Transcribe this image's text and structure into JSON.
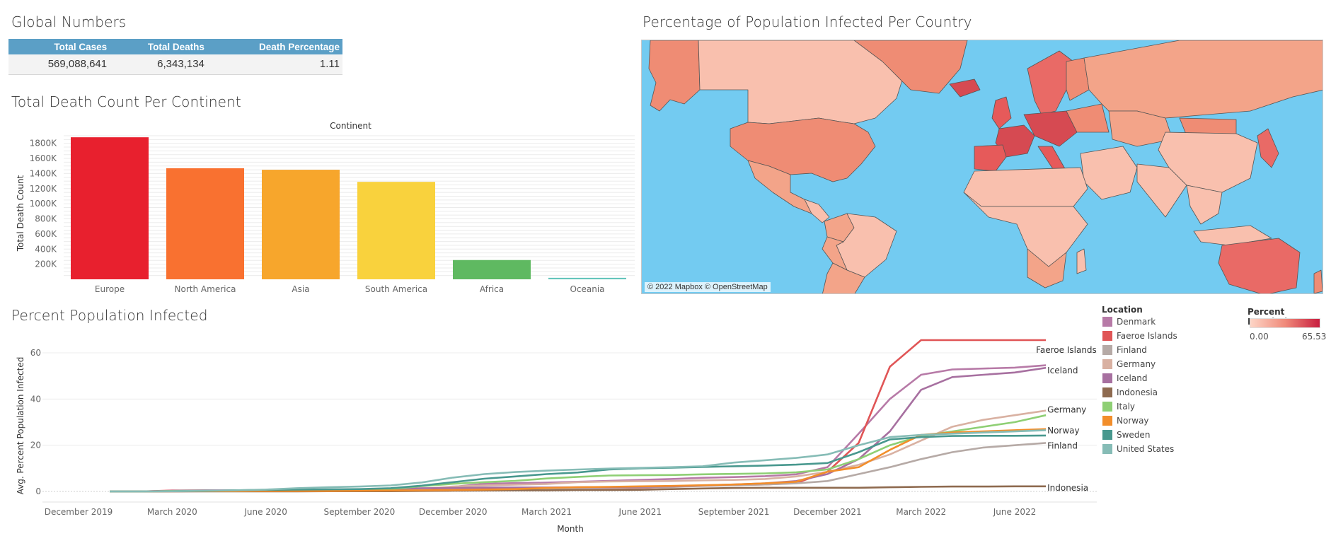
{
  "global_numbers": {
    "title": "Global Numbers",
    "headers": [
      "Total Cases",
      "Total Deaths",
      "Death Percentage"
    ],
    "values": [
      "569,088,641",
      "6,343,134",
      "1.11"
    ]
  },
  "map": {
    "title": "Percentage of Population Infected Per Country",
    "credit": "© 2022 Mapbox © OpenStreetMap",
    "colors": {
      "ocean": "#73cbf1",
      "low": "#f9c0ae",
      "mid": "#ef8c74",
      "high": "#d64a52"
    },
    "legend": {
      "title": "Percent Populatio..",
      "min": "0.00",
      "max": "65.53"
    }
  },
  "chart_data": [
    {
      "type": "bar",
      "title": "Total Death Count Per Continent",
      "header": "Continent",
      "ylabel": "Total Death Count",
      "xlabel": "",
      "categories": [
        "Europe",
        "North America",
        "Asia",
        "South America",
        "Africa",
        "Oceania"
      ],
      "values": [
        1880000,
        1470000,
        1450000,
        1290000,
        255000,
        20000
      ],
      "colors": [
        "#e8202e",
        "#f97130",
        "#f7a62c",
        "#f9d23d",
        "#5fb961",
        "#64c5bb"
      ],
      "ylim": [
        0,
        1900000
      ],
      "yticks": [
        200000,
        400000,
        600000,
        800000,
        1000000,
        1200000,
        1400000,
        1600000,
        1800000
      ],
      "ytick_labels": [
        "200K",
        "400K",
        "600K",
        "800K",
        "1000K",
        "1200K",
        "1400K",
        "1600K",
        "1800K"
      ]
    },
    {
      "type": "line",
      "title": "Percent Population Infected",
      "xlabel": "Month",
      "ylabel": "Avg. Percent Population Infected",
      "ylim": [
        0,
        66
      ],
      "yticks": [
        0,
        20,
        40,
        60
      ],
      "x_months": [
        "2020-01",
        "2020-02",
        "2020-03",
        "2020-04",
        "2020-05",
        "2020-06",
        "2020-07",
        "2020-08",
        "2020-09",
        "2020-10",
        "2020-11",
        "2020-12",
        "2021-01",
        "2021-02",
        "2021-03",
        "2021-04",
        "2021-05",
        "2021-06",
        "2021-07",
        "2021-08",
        "2021-09",
        "2021-10",
        "2021-11",
        "2021-12",
        "2022-01",
        "2022-02",
        "2022-03",
        "2022-04",
        "2022-05",
        "2022-06",
        "2022-07"
      ],
      "xticks": [
        "December 2019",
        "March 2020",
        "June 2020",
        "September 2020",
        "December 2020",
        "March 2021",
        "June 2021",
        "September 2021",
        "December 2021",
        "March 2022",
        "June 2022"
      ],
      "legend_title": "Location",
      "series": [
        {
          "name": "Denmark",
          "color": "#b77aa7",
          "values": [
            0,
            0,
            0.1,
            0.2,
            0.2,
            0.2,
            0.3,
            0.3,
            0.4,
            0.6,
            1.0,
            2.0,
            3.3,
            3.6,
            3.8,
            4.2,
            4.6,
            5.0,
            5.4,
            5.9,
            6.2,
            6.6,
            7.4,
            10.5,
            25,
            40,
            50.5,
            52.8,
            53.2,
            53.6,
            54.6
          ]
        },
        {
          "name": "Faeroe Islands",
          "color": "#e05556",
          "values": [
            0,
            0,
            0.4,
            0.4,
            0.4,
            0.4,
            0.4,
            0.5,
            0.8,
            1.0,
            1.0,
            1.0,
            1.2,
            1.3,
            1.3,
            1.4,
            1.4,
            1.5,
            2.0,
            2.5,
            2.8,
            3.0,
            3.6,
            8.5,
            21,
            54,
            65.5,
            65.5,
            65.5,
            65.5,
            65.5
          ]
        },
        {
          "name": "Finland",
          "color": "#b6aaa6",
          "values": [
            0,
            0,
            0,
            0.1,
            0.1,
            0.1,
            0.1,
            0.1,
            0.2,
            0.3,
            0.4,
            0.7,
            0.8,
            1.0,
            1.2,
            1.4,
            1.6,
            1.7,
            1.9,
            2.4,
            2.7,
            3.0,
            3.5,
            4.5,
            7.5,
            10.5,
            14,
            17,
            19,
            20,
            21
          ]
        },
        {
          "name": "Germany",
          "color": "#d9b1a2",
          "values": [
            0,
            0,
            0,
            0.2,
            0.2,
            0.2,
            0.3,
            0.3,
            0.4,
            0.6,
            1.1,
            2.1,
            2.6,
            2.9,
            3.2,
            4.0,
            4.3,
            4.4,
            4.5,
            4.8,
            5.0,
            5.4,
            6.5,
            8.5,
            11.5,
            16,
            22,
            28,
            31,
            33,
            35
          ]
        },
        {
          "name": "Iceland",
          "color": "#a770a0",
          "values": [
            0,
            0,
            0.3,
            0.5,
            0.5,
            0.5,
            0.6,
            0.6,
            0.8,
            1.0,
            1.4,
            1.5,
            1.7,
            1.7,
            1.7,
            1.8,
            1.9,
            2.0,
            2.2,
            2.6,
            3.0,
            3.5,
            4.5,
            7.5,
            14,
            26,
            44,
            49.5,
            50.5,
            51.5,
            53.5
          ]
        },
        {
          "name": "Indonesia",
          "color": "#8e6a4f",
          "values": [
            0,
            0,
            0,
            0,
            0,
            0,
            0,
            0.1,
            0.1,
            0.1,
            0.2,
            0.3,
            0.4,
            0.5,
            0.5,
            0.6,
            0.6,
            0.7,
            1.0,
            1.3,
            1.5,
            1.6,
            1.6,
            1.6,
            1.6,
            1.8,
            2.0,
            2.1,
            2.1,
            2.2,
            2.2
          ]
        },
        {
          "name": "Italy",
          "color": "#8ecf74",
          "values": [
            0,
            0,
            0.2,
            0.3,
            0.4,
            0.4,
            0.4,
            0.4,
            0.5,
            1.0,
            2.3,
            3.3,
            4.0,
            4.6,
            5.6,
            6.3,
            6.9,
            7.0,
            7.1,
            7.4,
            7.6,
            7.8,
            8.3,
            9.5,
            14,
            20,
            24,
            26,
            28,
            30,
            33
          ]
        },
        {
          "name": "Norway",
          "color": "#f28e2b",
          "values": [
            0,
            0,
            0.1,
            0.1,
            0.1,
            0.2,
            0.2,
            0.2,
            0.3,
            0.4,
            0.5,
            0.6,
            0.8,
            1.0,
            1.5,
            1.8,
            2.0,
            2.2,
            2.4,
            2.7,
            3.0,
            3.5,
            4.2,
            8.5,
            10.5,
            18,
            24.5,
            25.5,
            26,
            26.5,
            27
          ]
        },
        {
          "name": "Sweden",
          "color": "#48988e",
          "values": [
            0,
            0,
            0.1,
            0.2,
            0.5,
            0.7,
            0.8,
            0.9,
            1.0,
            1.4,
            2.5,
            4.0,
            5.5,
            6.5,
            7.5,
            8.2,
            9.5,
            10.0,
            10.3,
            10.6,
            10.9,
            11.2,
            11.6,
            12.3,
            17,
            22.5,
            23.5,
            24,
            24.1,
            24.1,
            24.2
          ]
        },
        {
          "name": "United States",
          "color": "#86bcb6",
          "values": [
            0,
            0,
            0.1,
            0.3,
            0.5,
            0.8,
            1.4,
            1.8,
            2.1,
            2.6,
            3.9,
            6.0,
            7.5,
            8.4,
            9.0,
            9.5,
            9.9,
            10.2,
            10.5,
            10.9,
            12.5,
            13.5,
            14.5,
            16,
            20,
            23.5,
            24.5,
            25,
            25.5,
            26,
            26.5
          ]
        }
      ],
      "end_labels": [
        "Faeroe Islands",
        "Iceland",
        "Germany",
        "Norway",
        "Finland",
        "Indonesia"
      ]
    }
  ]
}
